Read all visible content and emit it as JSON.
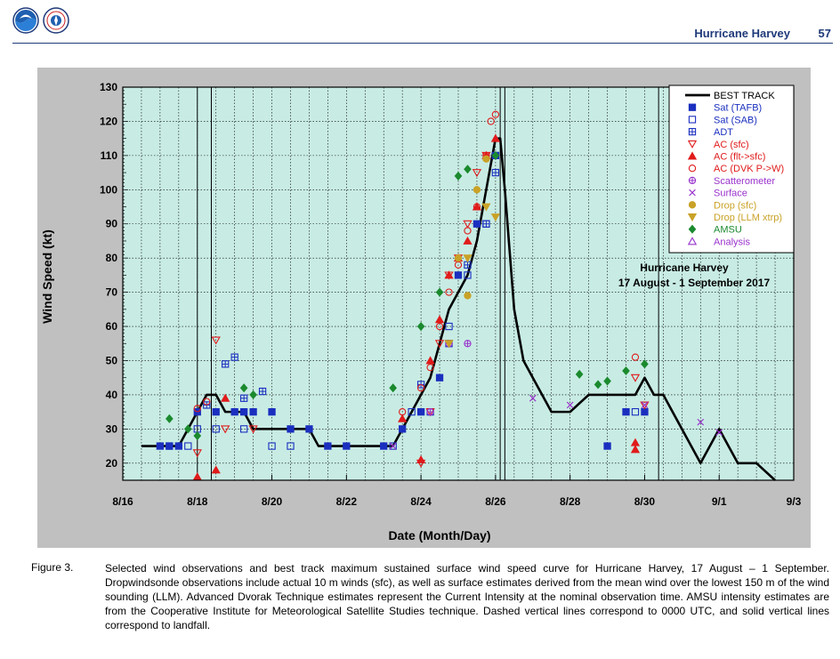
{
  "header": {
    "title": "Hurricane Harvey",
    "page_number": "57",
    "logos": [
      "noaa-logo",
      "weather-service-logo"
    ]
  },
  "caption": {
    "label": "Figure 3.",
    "text": "Selected wind observations and best track maximum sustained surface wind speed curve for Hurricane Harvey, 17 August – 1 September. Dropwindsonde observations include actual 10 m winds (sfc), as well as surface estimates derived from the mean wind over the lowest 150 m of the wind sounding (LLM). Advanced Dvorak Technique estimates represent the Current Intensity at the nominal observation time. AMSU intensity estimates are from the Cooperative Institute for Meteorological Satellite Studies technique. Dashed vertical lines correspond to 0000 UTC, and solid vertical lines correspond to landfall."
  },
  "chart_data": {
    "type": "scatter",
    "xlabel": "Date (Month/Day)",
    "ylabel": "Wind Speed (kt)",
    "xlim": [
      "8/16",
      "9/3"
    ],
    "ylim": [
      15,
      130
    ],
    "x_ticks": [
      "8/16",
      "8/18",
      "8/20",
      "8/22",
      "8/24",
      "8/26",
      "8/28",
      "8/30",
      "9/1",
      "9/3"
    ],
    "y_ticks": [
      "20",
      "30",
      "40",
      "50",
      "60",
      "70",
      "80",
      "90",
      "100",
      "110",
      "120",
      "130"
    ],
    "grid": true,
    "annotation": [
      "Hurricane Harvey",
      "17 August - 1 September 2017"
    ],
    "legend_position": "top-right",
    "colors": {
      "plot_background": "#c8ece4",
      "best_track": "#000000"
    },
    "landfall_dates": [
      "8/18 00Z",
      "8/18 09Z",
      "8/26 03Z",
      "8/26 06Z",
      "8/30 09Z"
    ],
    "series": [
      {
        "name": "BEST TRACK",
        "style": "line",
        "color": "#000000",
        "x": [
          "8/16 12Z",
          "8/17 00Z",
          "8/17 06Z",
          "8/17 12Z",
          "8/17 18Z",
          "8/18 00Z",
          "8/18 06Z",
          "8/18 12Z",
          "8/18 18Z",
          "8/19 00Z",
          "8/19 06Z",
          "8/19 12Z",
          "8/19 18Z",
          "8/20 00Z",
          "8/20 12Z",
          "8/21 00Z",
          "8/21 06Z",
          "8/22 00Z",
          "8/23 00Z",
          "8/23 06Z",
          "8/23 12Z",
          "8/23 18Z",
          "8/24 00Z",
          "8/24 06Z",
          "8/24 12Z",
          "8/24 18Z",
          "8/25 00Z",
          "8/25 06Z",
          "8/25 12Z",
          "8/25 18Z",
          "8/26 00Z",
          "8/26 03Z",
          "8/26 06Z",
          "8/26 12Z",
          "8/26 18Z",
          "8/27 00Z",
          "8/27 12Z",
          "8/28 00Z",
          "8/28 12Z",
          "8/29 00Z",
          "8/29 06Z",
          "8/29 12Z",
          "8/29 18Z",
          "8/30 00Z",
          "8/30 06Z",
          "8/30 12Z",
          "8/31 00Z",
          "8/31 12Z",
          "9/1 00Z",
          "9/1 12Z",
          "9/2 00Z",
          "9/2 12Z"
        ],
        "y": [
          25,
          25,
          25,
          25,
          30,
          35,
          40,
          40,
          35,
          35,
          35,
          30,
          30,
          30,
          30,
          30,
          25,
          25,
          25,
          25,
          30,
          35,
          40,
          45,
          55,
          65,
          70,
          75,
          85,
          100,
          115,
          115,
          100,
          65,
          50,
          45,
          35,
          35,
          40,
          40,
          40,
          40,
          40,
          45,
          40,
          40,
          30,
          20,
          30,
          20,
          20,
          15
        ]
      },
      {
        "name": "Sat (TAFB)",
        "style": "filled-square",
        "color": "#1a2fbf",
        "x": [
          "8/17 00Z",
          "8/17 06Z",
          "8/17 12Z",
          "8/18 00Z",
          "8/18 12Z",
          "8/19 00Z",
          "8/19 06Z",
          "8/19 12Z",
          "8/20 00Z",
          "8/20 12Z",
          "8/21 00Z",
          "8/21 12Z",
          "8/22 00Z",
          "8/23 00Z",
          "8/23 12Z",
          "8/24 00Z",
          "8/24 12Z",
          "8/25 00Z",
          "8/25 12Z",
          "8/26 00Z",
          "8/29 00Z",
          "8/29 12Z",
          "8/30 00Z"
        ],
        "y": [
          25,
          25,
          25,
          35,
          35,
          35,
          35,
          35,
          35,
          30,
          30,
          25,
          25,
          25,
          30,
          35,
          45,
          75,
          90,
          110,
          25,
          35,
          35
        ]
      },
      {
        "name": "Sat (SAB)",
        "style": "open-square",
        "color": "#1a2fbf",
        "x": [
          "8/17 06Z",
          "8/17 18Z",
          "8/18 00Z",
          "8/18 12Z",
          "8/19 06Z",
          "8/20 00Z",
          "8/20 12Z",
          "8/23 06Z",
          "8/23 18Z",
          "8/24 06Z",
          "8/24 18Z",
          "8/25 06Z",
          "8/25 18Z",
          "8/29 18Z"
        ],
        "y": [
          25,
          25,
          30,
          30,
          30,
          25,
          25,
          25,
          35,
          35,
          60,
          75,
          90,
          35
        ]
      },
      {
        "name": "ADT",
        "style": "hash-square",
        "color": "#1a2fbf",
        "x": [
          "8/18 06Z",
          "8/18 18Z",
          "8/19 00Z",
          "8/19 06Z",
          "8/19 18Z",
          "8/24 00Z",
          "8/24 18Z",
          "8/25 06Z",
          "8/25 18Z",
          "8/26 00Z"
        ],
        "y": [
          37,
          49,
          51,
          39,
          41,
          43,
          55,
          78,
          90,
          105
        ]
      },
      {
        "name": "AC (sfc)",
        "style": "open-triangle-down",
        "color": "#e01b1b",
        "x": [
          "8/18 00Z",
          "8/18 12Z",
          "8/18 18Z",
          "8/19 12Z",
          "8/24 00Z",
          "8/24 06Z",
          "8/24 12Z",
          "8/24 18Z",
          "8/25 00Z",
          "8/25 06Z",
          "8/25 12Z",
          "8/25 18Z",
          "8/29 18Z",
          "8/30 00Z"
        ],
        "y": [
          23,
          56,
          30,
          30,
          20,
          35,
          55,
          75,
          80,
          90,
          105,
          110,
          45,
          37
        ]
      },
      {
        "name": "AC (flt->sfc)",
        "style": "filled-triangle-up",
        "color": "#e01b1b",
        "x": [
          "8/18 00Z",
          "8/18 12Z",
          "8/18 18Z",
          "8/23 12Z",
          "8/24 00Z",
          "8/24 06Z",
          "8/24 12Z",
          "8/24 18Z",
          "8/25 00Z",
          "8/25 06Z",
          "8/25 12Z",
          "8/25 18Z",
          "8/26 00Z",
          "8/29 18Z",
          "8/29 18Z"
        ],
        "y": [
          16,
          18,
          39,
          33,
          21,
          50,
          62,
          75,
          80,
          85,
          95,
          110,
          115,
          26,
          24
        ]
      },
      {
        "name": "AC (DVK P->W)",
        "style": "open-circle",
        "color": "#e01b1b",
        "x": [
          "8/18 00Z",
          "8/18 06Z",
          "8/23 12Z",
          "8/24 00Z",
          "8/24 06Z",
          "8/24 12Z",
          "8/24 18Z",
          "8/25 00Z",
          "8/25 06Z",
          "8/25 12Z",
          "8/25 18Z",
          "8/25 21Z",
          "8/26 00Z",
          "8/29 18Z"
        ],
        "y": [
          36,
          38,
          35,
          42,
          48,
          60,
          70,
          78,
          88,
          95,
          110,
          120,
          122,
          51
        ]
      },
      {
        "name": "Scatterometer",
        "style": "crossed-circle",
        "color": "#9933cc",
        "x": [
          "8/24 06Z",
          "8/24 18Z",
          "8/25 06Z"
        ],
        "y": [
          35,
          55,
          55
        ]
      },
      {
        "name": "Surface",
        "style": "x",
        "color": "#9933cc",
        "x": [
          "8/23 06Z",
          "8/27 00Z",
          "8/28 00Z",
          "8/30 00Z",
          "8/31 12Z",
          "9/1 00Z"
        ],
        "y": [
          25,
          39,
          37,
          37,
          32,
          29
        ]
      },
      {
        "name": "Drop (sfc)",
        "style": "filled-circle",
        "color": "#c9a227",
        "x": [
          "8/25 00Z",
          "8/25 06Z",
          "8/25 12Z",
          "8/25 18Z"
        ],
        "y": [
          80,
          69,
          100,
          109
        ]
      },
      {
        "name": "Drop (LLM xtrp)",
        "style": "filled-triangle-down",
        "color": "#c9a227",
        "x": [
          "8/24 18Z",
          "8/25 06Z",
          "8/25 18Z",
          "8/26 00Z"
        ],
        "y": [
          55,
          80,
          95,
          92
        ]
      },
      {
        "name": "AMSU",
        "style": "filled-diamond",
        "color": "#1b8a2e",
        "x": [
          "8/17 06Z",
          "8/17 18Z",
          "8/18 00Z",
          "8/19 06Z",
          "8/19 12Z",
          "8/23 06Z",
          "8/24 00Z",
          "8/24 12Z",
          "8/25 00Z",
          "8/25 06Z",
          "8/26 00Z",
          "8/28 06Z",
          "8/28 18Z",
          "8/29 00Z",
          "8/29 12Z",
          "8/30 00Z"
        ],
        "y": [
          33,
          30,
          28,
          42,
          40,
          42,
          60,
          70,
          104,
          106,
          110,
          46,
          43,
          44,
          47,
          49
        ]
      },
      {
        "name": "Analysis",
        "style": "open-triangle-up",
        "color": "#9933cc",
        "x": [],
        "y": []
      }
    ]
  }
}
